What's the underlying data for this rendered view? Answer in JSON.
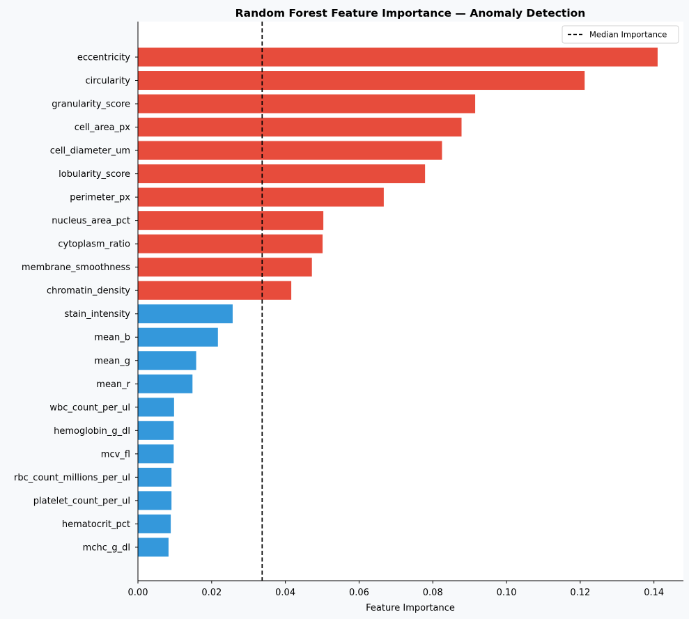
{
  "chart_data": {
    "type": "bar",
    "orientation": "horizontal",
    "title": "Random Forest Feature Importance — Anomaly Detection",
    "xlabel": "Feature Importance",
    "ylabel": "",
    "xlim": [
      0,
      0.148
    ],
    "xticks": [
      "0.00",
      "0.02",
      "0.04",
      "0.06",
      "0.08",
      "0.10",
      "0.12",
      "0.14"
    ],
    "categories": [
      "eccentricity",
      "circularity",
      "granularity_score",
      "cell_area_px",
      "cell_diameter_um",
      "lobularity_score",
      "perimeter_px",
      "nucleus_area_pct",
      "cytoplasm_ratio",
      "membrane_smoothness",
      "chromatin_density",
      "stain_intensity",
      "mean_b",
      "mean_g",
      "mean_r",
      "wbc_count_per_ul",
      "hemoglobin_g_dl",
      "mcv_fl",
      "rbc_count_millions_per_ul",
      "platelet_count_per_ul",
      "hematocrit_pct",
      "mchc_g_dl"
    ],
    "values": [
      0.141,
      0.1212,
      0.0915,
      0.0878,
      0.0825,
      0.0779,
      0.0667,
      0.0503,
      0.0501,
      0.0472,
      0.0416,
      0.0257,
      0.0217,
      0.0158,
      0.0148,
      0.0098,
      0.0097,
      0.0097,
      0.0091,
      0.0091,
      0.0089,
      0.0083
    ],
    "reference_line": {
      "label": "Median Importance",
      "value": 0.0337,
      "style": "dashed",
      "color": "#000000"
    },
    "colors": {
      "above_median": "#e74c3c",
      "below_median": "#3498db"
    },
    "legend_position": "top-right",
    "grid": false
  }
}
